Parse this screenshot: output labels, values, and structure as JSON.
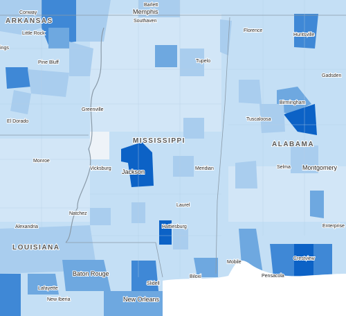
{
  "states": [
    "ARKANSAS",
    "MISSISSIPPI",
    "ALABAMA",
    "LOUISIANA"
  ],
  "cities": [
    "Conway",
    "Memphis",
    "Barlett",
    "Southaven",
    "Little Rock",
    "ings",
    "Pine Bluff",
    "Tupelo",
    "Florence",
    "Huntsville",
    "Gadsden",
    "Birmingham",
    "Greenville",
    "El Dorado",
    "Tuscaloosa",
    "Monroe",
    "Vicksburg",
    "Jackson",
    "Meridian",
    "Selma",
    "Montgomery",
    "Laurel",
    "Natchez",
    "Alexandria",
    "Hattiesburg",
    "Enterprise",
    "Mobile",
    "Pensacola",
    "Crestview",
    "Baton Rouge",
    "Lafayette",
    "Biloxi",
    "Slidell",
    "New Iberia",
    "New Orleans"
  ]
}
